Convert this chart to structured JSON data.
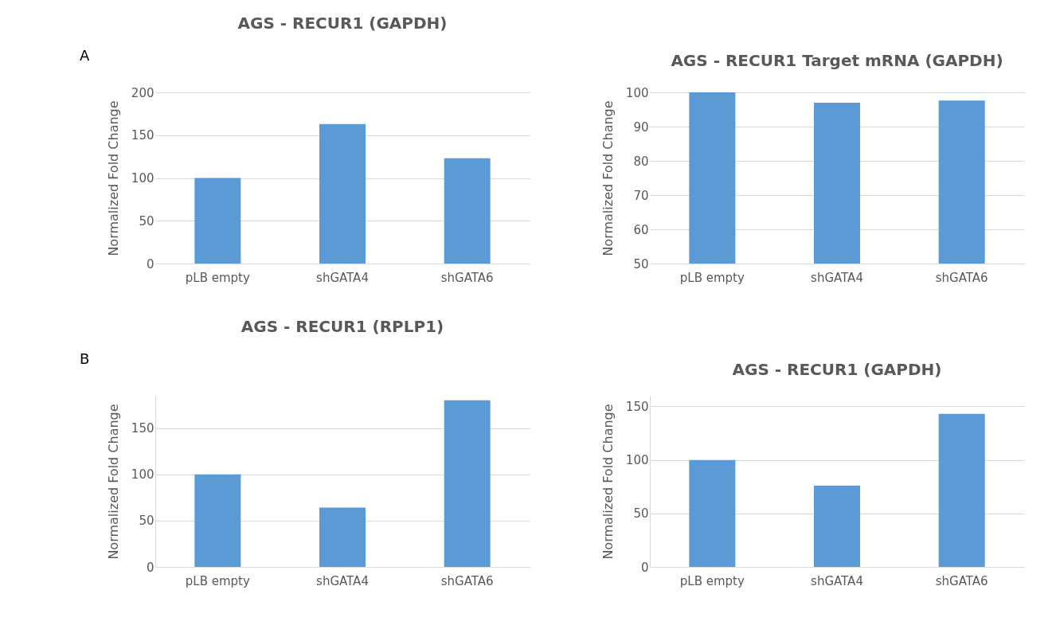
{
  "chart_data": [
    {
      "type": "bar",
      "title": "AGS - RECUR1 (GAPDH)",
      "ylabel": "Normalized Fold Change",
      "categories": [
        "pLB empty",
        "shGATA4",
        "shGATA6"
      ],
      "values": [
        100,
        163,
        123
      ],
      "color": "#5b9bd5",
      "ylim": [
        0,
        200
      ],
      "yticks": [
        0,
        50,
        100,
        150,
        200
      ],
      "grid": "y",
      "annotations": [
        "A"
      ]
    },
    {
      "type": "bar",
      "title": "AGS - RECUR1 Target mRNA (GAPDH)",
      "ylabel": "Normalized Fold Change",
      "categories": [
        "pLB empty",
        "shGATA4",
        "shGATA6"
      ],
      "values": [
        100,
        97,
        97.6
      ],
      "color": "#5b9bd5",
      "ylim": [
        50,
        100
      ],
      "yticks": [
        50,
        60,
        70,
        80,
        90,
        100
      ],
      "grid": "y"
    },
    {
      "type": "bar",
      "title": "AGS - RECUR1 (RPLP1)",
      "ylabel": "Normalized Fold Change",
      "categories": [
        "pLB empty",
        "shGATA4",
        "shGATA6"
      ],
      "values": [
        100,
        64,
        180
      ],
      "color": "#5b9bd5",
      "ylim": [
        0,
        185
      ],
      "yticks": [
        0,
        50,
        100,
        150
      ],
      "grid": "y",
      "annotations": [
        "B"
      ]
    },
    {
      "type": "bar",
      "title": "AGS - RECUR1 (GAPDH)",
      "ylabel": "Normalized Fold Change",
      "categories": [
        "pLB empty",
        "shGATA4",
        "shGATA6"
      ],
      "values": [
        100,
        76,
        143
      ],
      "color": "#5b9bd5",
      "ylim": [
        0,
        160
      ],
      "yticks": [
        0,
        50,
        100,
        150
      ],
      "grid": "y"
    }
  ]
}
